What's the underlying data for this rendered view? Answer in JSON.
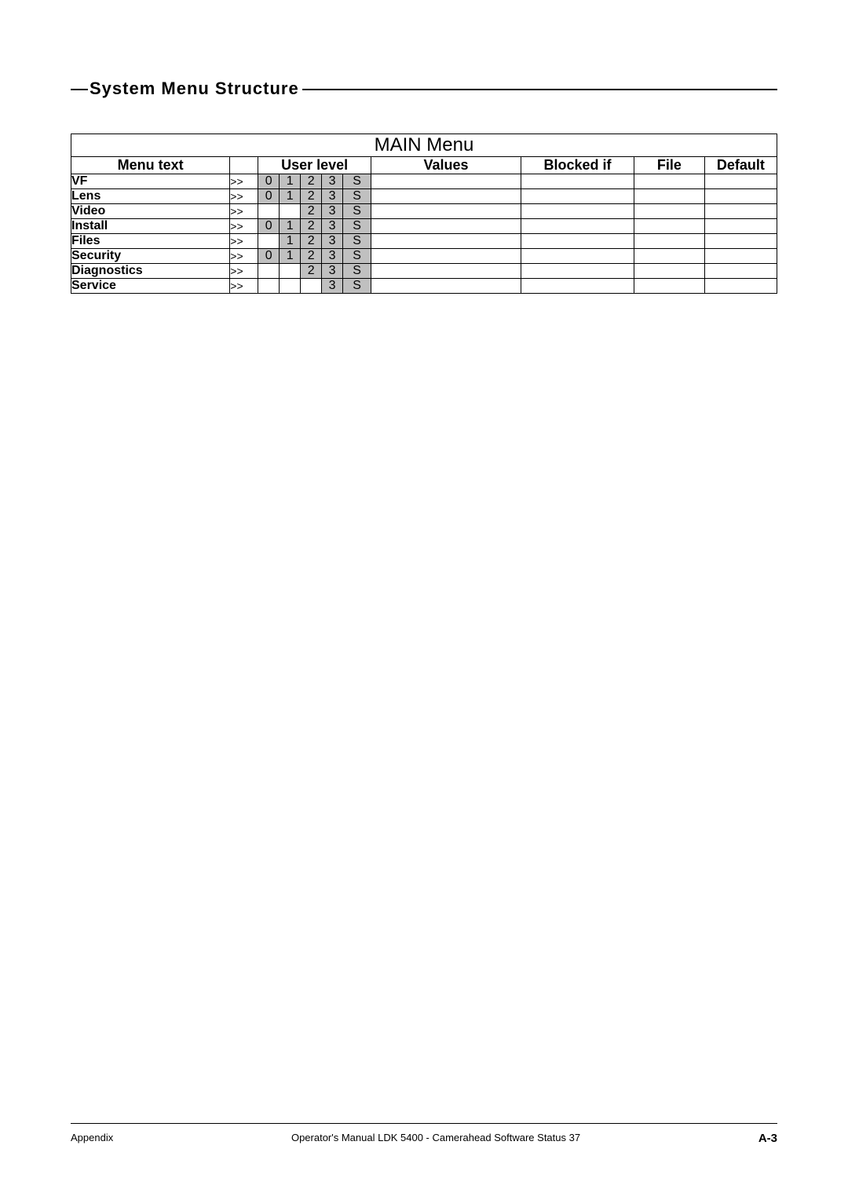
{
  "heading": "System Menu Structure",
  "table": {
    "title": "MAIN Menu",
    "headers": {
      "menu_text": "Menu text",
      "arrow": "",
      "user_level": "User level",
      "values": "Values",
      "blocked_if": "Blocked if",
      "file": "File",
      "default": "Default"
    },
    "level_labels": [
      "0",
      "1",
      "2",
      "3",
      "S"
    ],
    "arrow_glyph": ">>",
    "rows": [
      {
        "menu_text": "VF",
        "levels": [
          true,
          true,
          true,
          true,
          true
        ],
        "values": "",
        "blocked_if": "",
        "file": "",
        "default": ""
      },
      {
        "menu_text": "Lens",
        "levels": [
          true,
          true,
          true,
          true,
          true
        ],
        "values": "",
        "blocked_if": "",
        "file": "",
        "default": ""
      },
      {
        "menu_text": "Video",
        "levels": [
          false,
          false,
          true,
          true,
          true
        ],
        "values": "",
        "blocked_if": "",
        "file": "",
        "default": ""
      },
      {
        "menu_text": "Install",
        "levels": [
          true,
          true,
          true,
          true,
          true
        ],
        "values": "",
        "blocked_if": "",
        "file": "",
        "default": ""
      },
      {
        "menu_text": "Files",
        "levels": [
          false,
          true,
          true,
          true,
          true
        ],
        "values": "",
        "blocked_if": "",
        "file": "",
        "default": ""
      },
      {
        "menu_text": "Security",
        "levels": [
          true,
          true,
          true,
          true,
          true
        ],
        "values": "",
        "blocked_if": "",
        "file": "",
        "default": ""
      },
      {
        "menu_text": "Diagnostics",
        "levels": [
          false,
          false,
          true,
          true,
          true
        ],
        "values": "",
        "blocked_if": "",
        "file": "",
        "default": ""
      },
      {
        "menu_text": "Service",
        "levels": [
          false,
          false,
          false,
          true,
          true
        ],
        "values": "",
        "blocked_if": "",
        "file": "",
        "default": ""
      }
    ]
  },
  "footer": {
    "left": "Appendix",
    "center": "Operator's Manual LDK 5400 - Camerahead Software Status 37",
    "right": "A-3"
  },
  "colors": {
    "shade": "#c0c0c0",
    "border": "#000000",
    "background": "#ffffff"
  }
}
